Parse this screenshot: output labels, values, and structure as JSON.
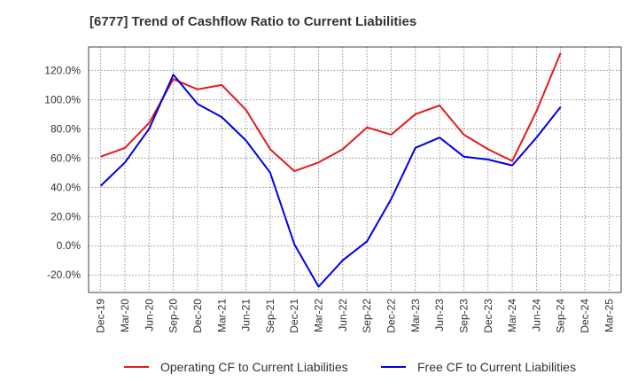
{
  "chart_data": {
    "type": "line",
    "title": "[6777]  Trend of Cashflow Ratio to Current Liabilities",
    "xlabel": "",
    "ylabel": "",
    "x": [
      "Dec-19",
      "Mar-20",
      "Jun-20",
      "Sep-20",
      "Dec-20",
      "Mar-21",
      "Jun-21",
      "Sep-21",
      "Dec-21",
      "Mar-22",
      "Jun-22",
      "Sep-22",
      "Dec-22",
      "Mar-23",
      "Jun-23",
      "Sep-23",
      "Dec-23",
      "Mar-24",
      "Jun-24",
      "Sep-24",
      "Dec-24",
      "Mar-25"
    ],
    "ylim": [
      -32,
      136
    ],
    "yticks": [
      -20,
      0,
      20,
      40,
      60,
      80,
      100,
      120
    ],
    "ytick_labels": [
      "-20.0%",
      "0.0%",
      "20.0%",
      "40.0%",
      "60.0%",
      "80.0%",
      "100.0%",
      "120.0%"
    ],
    "grid": true,
    "legend_position": "bottom",
    "series": [
      {
        "name": "Operating CF to Current Liabilities",
        "color": "#e41a1c",
        "values": [
          61,
          67,
          84,
          114,
          107,
          110,
          93,
          66,
          51,
          57,
          66,
          81,
          76,
          90,
          96,
          76,
          66,
          58,
          92,
          132,
          null,
          null
        ]
      },
      {
        "name": "Free CF to Current Liabilities",
        "color": "#0000e6",
        "values": [
          41,
          57,
          80,
          117,
          97,
          88,
          72,
          50,
          1,
          -28,
          -10,
          3,
          32,
          67,
          74,
          61,
          59,
          55,
          74,
          95,
          null,
          null
        ]
      }
    ]
  }
}
